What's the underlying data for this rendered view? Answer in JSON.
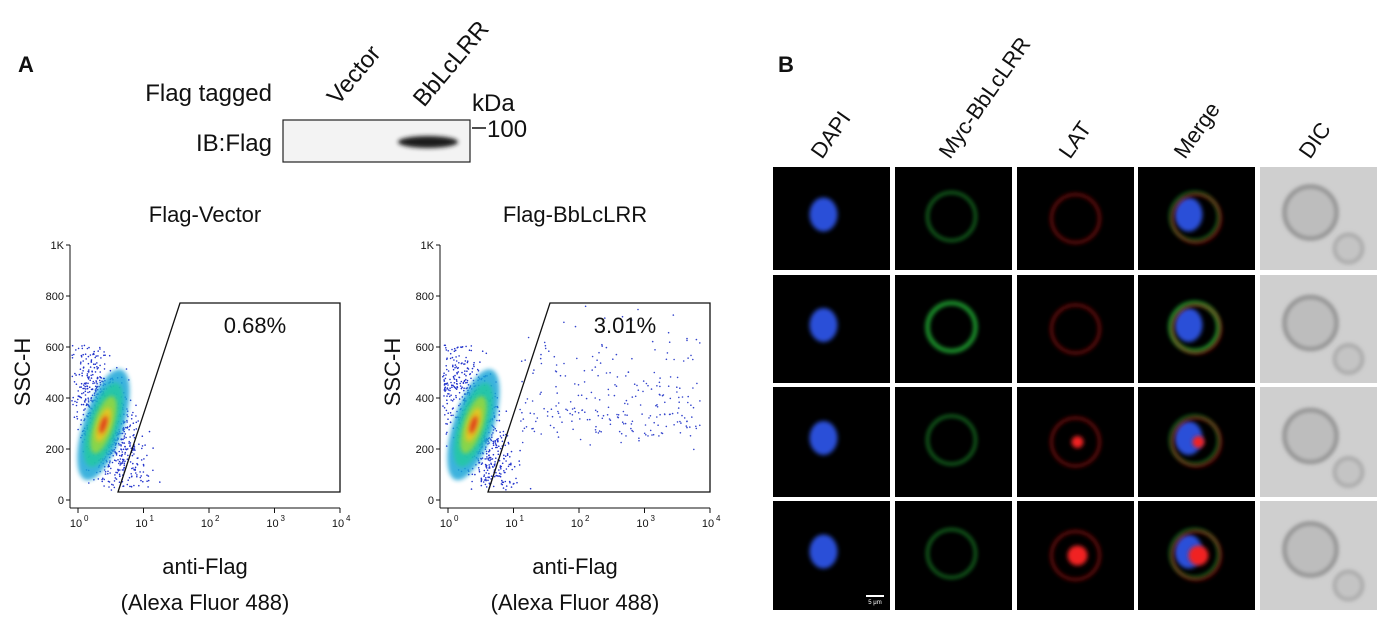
{
  "panel_a": {
    "label": "A",
    "blot": {
      "row_title": "Flag tagged",
      "lanes": [
        "Vector",
        "BbLcLRR"
      ],
      "unit": "kDa",
      "marker": "100",
      "antibody": "IB:Flag"
    },
    "plots": [
      {
        "title": "Flag-Vector",
        "gate_percent": "0.68%"
      },
      {
        "title": "Flag-BbLcLRR",
        "gate_percent": "3.01%"
      }
    ],
    "y_label": "SSC-H",
    "x_label": [
      "anti-Flag",
      "(Alexa Fluor 488)"
    ],
    "y_ticks": [
      "0",
      "200",
      "400",
      "600",
      "800",
      "1K"
    ],
    "x_ticks": [
      {
        "base": "10",
        "exp": "0"
      },
      {
        "base": "10",
        "exp": "1"
      },
      {
        "base": "10",
        "exp": "2"
      },
      {
        "base": "10",
        "exp": "3"
      },
      {
        "base": "10",
        "exp": "4"
      }
    ]
  },
  "panel_b": {
    "label": "B",
    "columns": [
      "DAPI",
      "Myc-BbLcLRR",
      "LAT",
      "Merge",
      "DIC"
    ],
    "scale_bar": "5 μm"
  }
}
